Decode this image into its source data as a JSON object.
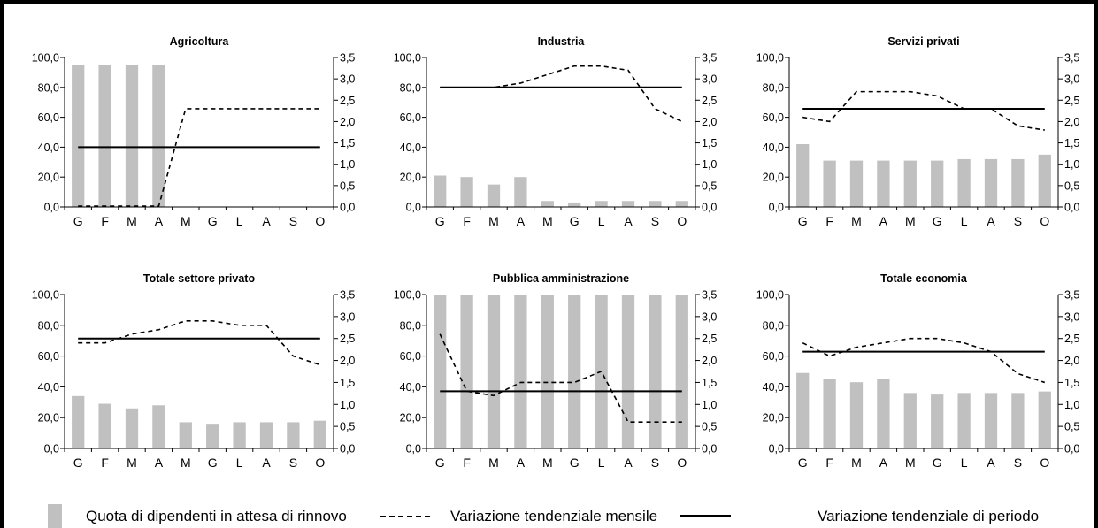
{
  "colors": {
    "bar": "#c0c0c0",
    "line": "#000000",
    "background": "#ffffff"
  },
  "legend": {
    "bar": "Quota di dipendenti in attesa di rinnovo",
    "dashed": "Variazione tendenziale mensile",
    "solid": "Variazione tendenziale di periodo"
  },
  "chart_data": [
    {
      "type": "bar+line",
      "title": "Agricoltura",
      "categories": [
        "G",
        "F",
        "M",
        "A",
        "M",
        "G",
        "L",
        "A",
        "S",
        "O"
      ],
      "ylim_left": [
        0,
        100
      ],
      "yticks_left": [
        "0,0",
        "20,0",
        "40,0",
        "60,0",
        "80,0",
        "100,0"
      ],
      "ylim_right": [
        0,
        3.5
      ],
      "yticks_right": [
        "0,0",
        "0,5",
        "1,0",
        "1,5",
        "2,0",
        "2,5",
        "3,0",
        "3,5"
      ],
      "series": [
        {
          "name": "Quota di dipendenti in attesa di rinnovo",
          "kind": "bar",
          "axis": "left",
          "values": [
            95,
            95,
            95,
            95,
            0,
            0,
            0,
            0,
            0,
            0
          ]
        },
        {
          "name": "Variazione tendenziale mensile",
          "kind": "dashed",
          "axis": "right",
          "values": [
            0.02,
            0.02,
            0.02,
            0.02,
            2.3,
            2.3,
            2.3,
            2.3,
            2.3,
            2.3
          ]
        },
        {
          "name": "Variazione tendenziale di periodo",
          "kind": "solid",
          "axis": "right",
          "values": [
            1.4,
            1.4,
            1.4,
            1.4,
            1.4,
            1.4,
            1.4,
            1.4,
            1.4,
            1.4
          ]
        }
      ]
    },
    {
      "type": "bar+line",
      "title": "Industria",
      "categories": [
        "G",
        "F",
        "M",
        "A",
        "M",
        "G",
        "L",
        "A",
        "S",
        "O"
      ],
      "ylim_left": [
        0,
        100
      ],
      "yticks_left": [
        "0,0",
        "20,0",
        "40,0",
        "60,0",
        "80,0",
        "100,0"
      ],
      "ylim_right": [
        0,
        3.5
      ],
      "yticks_right": [
        "0,0",
        "0,5",
        "1,0",
        "1,5",
        "2,0",
        "2,5",
        "3,0",
        "3,5"
      ],
      "series": [
        {
          "name": "Quota di dipendenti in attesa di rinnovo",
          "kind": "bar",
          "axis": "left",
          "values": [
            21,
            20,
            15,
            20,
            4,
            3,
            4,
            4,
            4,
            4
          ]
        },
        {
          "name": "Variazione tendenziale mensile",
          "kind": "dashed",
          "axis": "right",
          "values": [
            2.8,
            2.8,
            2.8,
            2.9,
            3.1,
            3.3,
            3.3,
            3.2,
            2.3,
            2.0
          ]
        },
        {
          "name": "Variazione tendenziale di periodo",
          "kind": "solid",
          "axis": "right",
          "values": [
            2.8,
            2.8,
            2.8,
            2.8,
            2.8,
            2.8,
            2.8,
            2.8,
            2.8,
            2.8
          ]
        }
      ]
    },
    {
      "type": "bar+line",
      "title": "Servizi privati",
      "categories": [
        "G",
        "F",
        "M",
        "A",
        "M",
        "G",
        "L",
        "A",
        "S",
        "O"
      ],
      "ylim_left": [
        0,
        100
      ],
      "yticks_left": [
        "0,0",
        "20,0",
        "40,0",
        "60,0",
        "80,0",
        "100,0"
      ],
      "ylim_right": [
        0,
        3.5
      ],
      "yticks_right": [
        "0,0",
        "0,5",
        "1,0",
        "1,5",
        "2,0",
        "2,5",
        "3,0",
        "3,5"
      ],
      "series": [
        {
          "name": "Quota di dipendenti in attesa di rinnovo",
          "kind": "bar",
          "axis": "left",
          "values": [
            42,
            31,
            31,
            31,
            31,
            31,
            32,
            32,
            32,
            35
          ]
        },
        {
          "name": "Variazione tendenziale mensile",
          "kind": "dashed",
          "axis": "right",
          "values": [
            2.1,
            2.0,
            2.7,
            2.7,
            2.7,
            2.6,
            2.3,
            2.3,
            1.9,
            1.8
          ]
        },
        {
          "name": "Variazione tendenziale di periodo",
          "kind": "solid",
          "axis": "right",
          "values": [
            2.3,
            2.3,
            2.3,
            2.3,
            2.3,
            2.3,
            2.3,
            2.3,
            2.3,
            2.3
          ]
        }
      ]
    },
    {
      "type": "bar+line",
      "title": "Totale settore privato",
      "categories": [
        "G",
        "F",
        "M",
        "A",
        "M",
        "G",
        "L",
        "A",
        "S",
        "O"
      ],
      "ylim_left": [
        0,
        100
      ],
      "yticks_left": [
        "0,0",
        "20,0",
        "40,0",
        "60,0",
        "80,0",
        "100,0"
      ],
      "ylim_right": [
        0,
        3.5
      ],
      "yticks_right": [
        "0,0",
        "0,5",
        "1,0",
        "1,5",
        "2,0",
        "2,5",
        "3,0",
        "3,5"
      ],
      "series": [
        {
          "name": "Quota di dipendenti in attesa di rinnovo",
          "kind": "bar",
          "axis": "left",
          "values": [
            34,
            29,
            26,
            28,
            17,
            16,
            17,
            17,
            17,
            18
          ]
        },
        {
          "name": "Variazione tendenziale mensile",
          "kind": "dashed",
          "axis": "right",
          "values": [
            2.4,
            2.4,
            2.6,
            2.7,
            2.9,
            2.9,
            2.8,
            2.8,
            2.1,
            1.9
          ]
        },
        {
          "name": "Variazione tendenziale di periodo",
          "kind": "solid",
          "axis": "right",
          "values": [
            2.5,
            2.5,
            2.5,
            2.5,
            2.5,
            2.5,
            2.5,
            2.5,
            2.5,
            2.5
          ]
        }
      ]
    },
    {
      "type": "bar+line",
      "title": "Pubblica amministrazione",
      "categories": [
        "G",
        "F",
        "M",
        "A",
        "M",
        "G",
        "L",
        "A",
        "S",
        "O"
      ],
      "ylim_left": [
        0,
        100
      ],
      "yticks_left": [
        "0,0",
        "20,0",
        "40,0",
        "60,0",
        "80,0",
        "100,0"
      ],
      "ylim_right": [
        0,
        3.5
      ],
      "yticks_right": [
        "0,0",
        "0,5",
        "1,0",
        "1,5",
        "2,0",
        "2,5",
        "3,0",
        "3,5"
      ],
      "series": [
        {
          "name": "Quota di dipendenti in attesa di rinnovo",
          "kind": "bar",
          "axis": "left",
          "values": [
            100,
            100,
            100,
            100,
            100,
            100,
            100,
            100,
            100,
            100
          ]
        },
        {
          "name": "Variazione tendenziale mensile",
          "kind": "dashed",
          "axis": "right",
          "values": [
            2.6,
            1.3,
            1.2,
            1.5,
            1.5,
            1.5,
            1.75,
            0.6,
            0.6,
            0.6
          ]
        },
        {
          "name": "Variazione tendenziale di periodo",
          "kind": "solid",
          "axis": "right",
          "values": [
            1.3,
            1.3,
            1.3,
            1.3,
            1.3,
            1.3,
            1.3,
            1.3,
            1.3,
            1.3
          ]
        }
      ]
    },
    {
      "type": "bar+line",
      "title": "Totale economia",
      "categories": [
        "G",
        "F",
        "M",
        "A",
        "M",
        "G",
        "L",
        "A",
        "S",
        "O"
      ],
      "ylim_left": [
        0,
        100
      ],
      "yticks_left": [
        "0,0",
        "20,0",
        "40,0",
        "60,0",
        "80,0",
        "100,0"
      ],
      "ylim_right": [
        0,
        3.5
      ],
      "yticks_right": [
        "0,0",
        "0,5",
        "1,0",
        "1,5",
        "2,0",
        "2,5",
        "3,0",
        "3,5"
      ],
      "series": [
        {
          "name": "Quota di dipendenti in attesa di rinnovo",
          "kind": "bar",
          "axis": "left",
          "values": [
            49,
            45,
            43,
            45,
            36,
            35,
            36,
            36,
            36,
            37
          ]
        },
        {
          "name": "Variazione tendenziale mensile",
          "kind": "dashed",
          "axis": "right",
          "values": [
            2.4,
            2.1,
            2.3,
            2.4,
            2.5,
            2.5,
            2.4,
            2.2,
            1.7,
            1.5
          ]
        },
        {
          "name": "Variazione tendenziale di periodo",
          "kind": "solid",
          "axis": "right",
          "values": [
            2.2,
            2.2,
            2.2,
            2.2,
            2.2,
            2.2,
            2.2,
            2.2,
            2.2,
            2.2
          ]
        }
      ]
    }
  ]
}
